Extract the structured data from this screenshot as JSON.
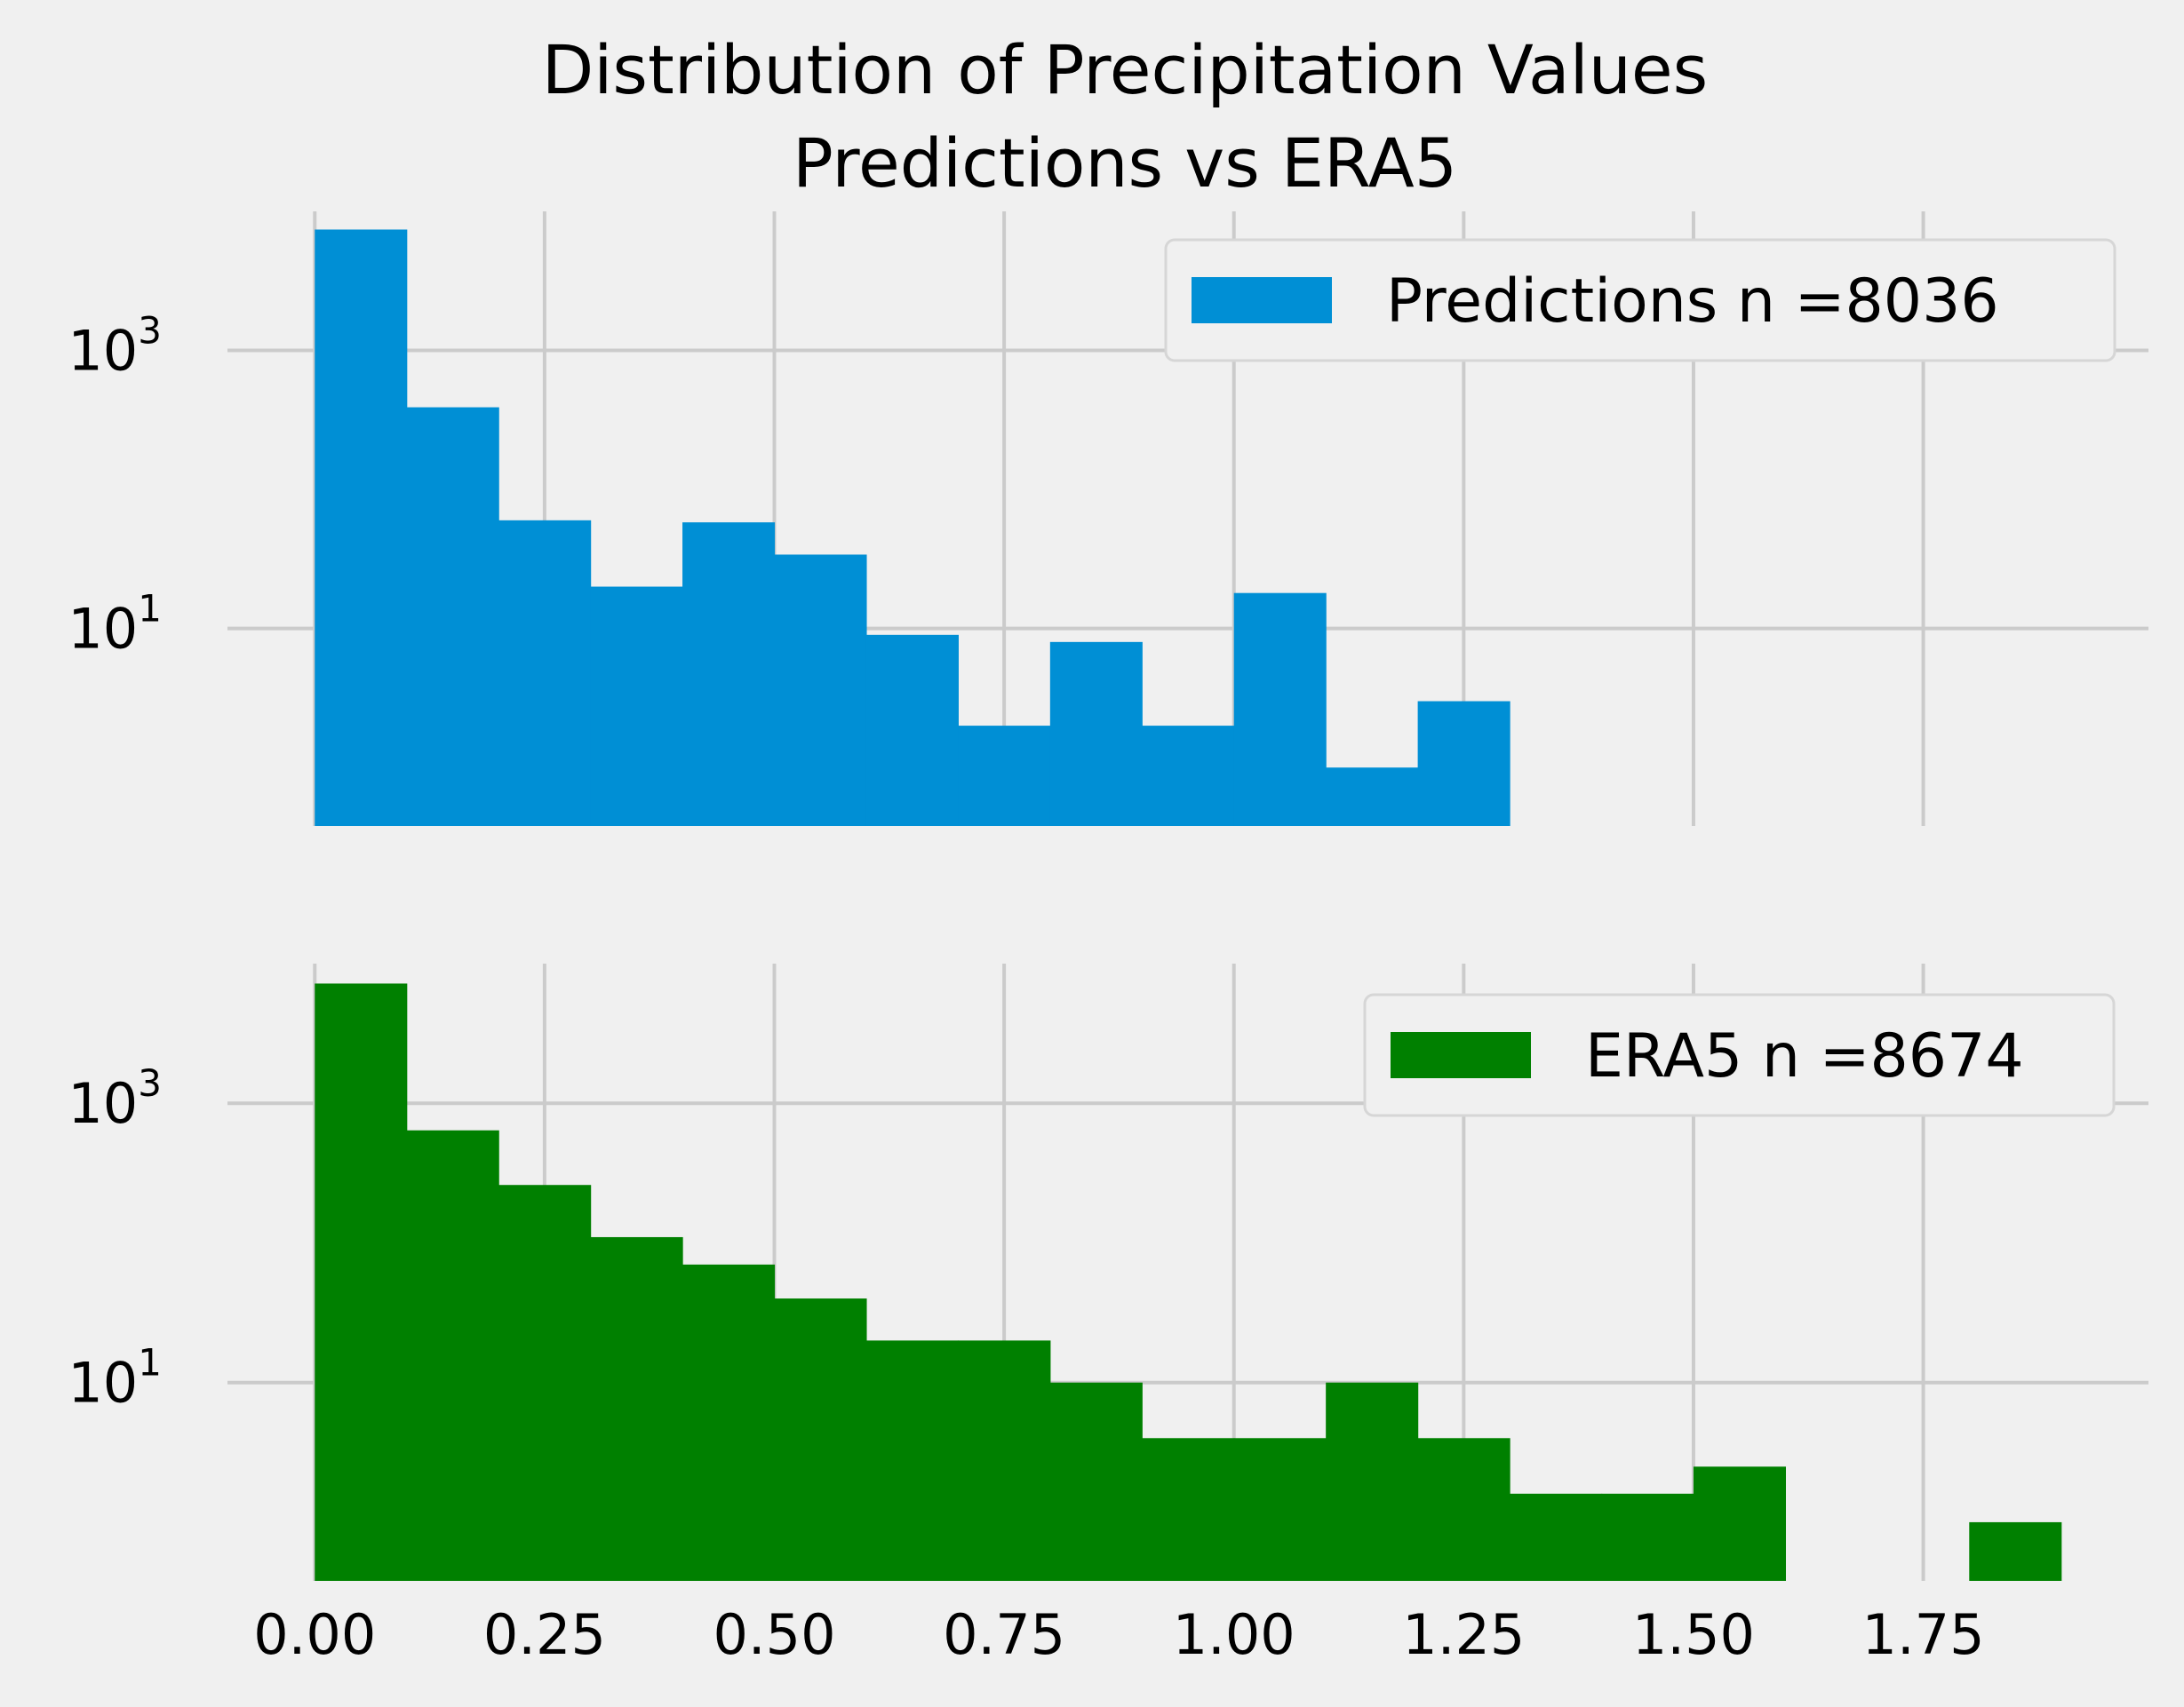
{
  "figure_title": [
    "Distribution of Precipitation Values",
    "Predictions vs ERA5"
  ],
  "colors": {
    "background": "#f0f0f0",
    "grid": "#cbcbcb",
    "predictions": "#008fd5",
    "era5": "#008000"
  },
  "chart_data": [
    {
      "type": "bar",
      "subtype": "histogram",
      "yscale": "log",
      "grid": true,
      "legend_position": "top-right",
      "legend": "Predictions n =8036",
      "color": "#008fd5",
      "xlim": [
        -0.095,
        1.995
      ],
      "ylim": [
        0.38,
        10000
      ],
      "yticks": [
        10,
        1000
      ],
      "ytick_labels": [
        {
          "base": "10",
          "exp": "1"
        },
        {
          "base": "10",
          "exp": "3"
        }
      ],
      "bin_width": 0.1,
      "bin_starts": [
        0.0,
        0.1,
        0.2,
        0.3,
        0.4,
        0.5,
        0.6,
        0.7,
        0.8,
        0.9,
        1.0,
        1.1,
        1.2
      ],
      "counts": [
        7400,
        390,
        60,
        20,
        58,
        34,
        9,
        2,
        8,
        2,
        18,
        1,
        3
      ]
    },
    {
      "type": "bar",
      "subtype": "histogram",
      "yscale": "log",
      "grid": true,
      "legend_position": "top-right",
      "legend": "ERA5 n =8674",
      "color": "#008000",
      "xlim": [
        -0.095,
        1.995
      ],
      "ylim": [
        0.38,
        10000
      ],
      "yticks": [
        10,
        1000
      ],
      "ytick_labels": [
        {
          "base": "10",
          "exp": "1"
        },
        {
          "base": "10",
          "exp": "3"
        }
      ],
      "xticks": [
        0.0,
        0.25,
        0.5,
        0.75,
        1.0,
        1.25,
        1.5,
        1.75
      ],
      "xtick_labels": [
        "0.00",
        "0.25",
        "0.50",
        "0.75",
        "1.00",
        "1.25",
        "1.50",
        "1.75"
      ],
      "bin_width": 0.1,
      "bin_starts": [
        0.0,
        0.1,
        0.2,
        0.3,
        0.4,
        0.5,
        0.6,
        0.7,
        0.8,
        0.9,
        1.0,
        1.1,
        1.2,
        1.3,
        1.4,
        1.5,
        1.6,
        1.7,
        1.8
      ],
      "counts": [
        7200,
        640,
        260,
        110,
        70,
        40,
        20,
        20,
        10,
        4,
        4,
        10,
        4,
        1.6,
        1.6,
        2.5,
        0,
        0,
        1
      ]
    }
  ]
}
